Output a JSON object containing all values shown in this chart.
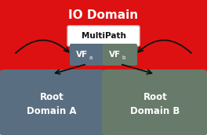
{
  "io_domain_color": "#dd1111",
  "io_domain_label": "IO Domain",
  "multipath_label": "MultiPath",
  "multipath_bg": "#ffffff",
  "vfa_label": "VF",
  "vfa_sub": "a",
  "vfb_label": "VF",
  "vfb_sub": "b",
  "vfa_color": "#5a6e82",
  "vfb_color": "#687a6a",
  "root_a_color": "#5a6e82",
  "root_b_color": "#687a6a",
  "root_a_label": "Root\nDomain A",
  "root_b_label": "Root\nDomain B",
  "text_color": "#ffffff",
  "arrow_color": "#111111",
  "background_color": "#ffffff",
  "border_color": "#cccccc"
}
